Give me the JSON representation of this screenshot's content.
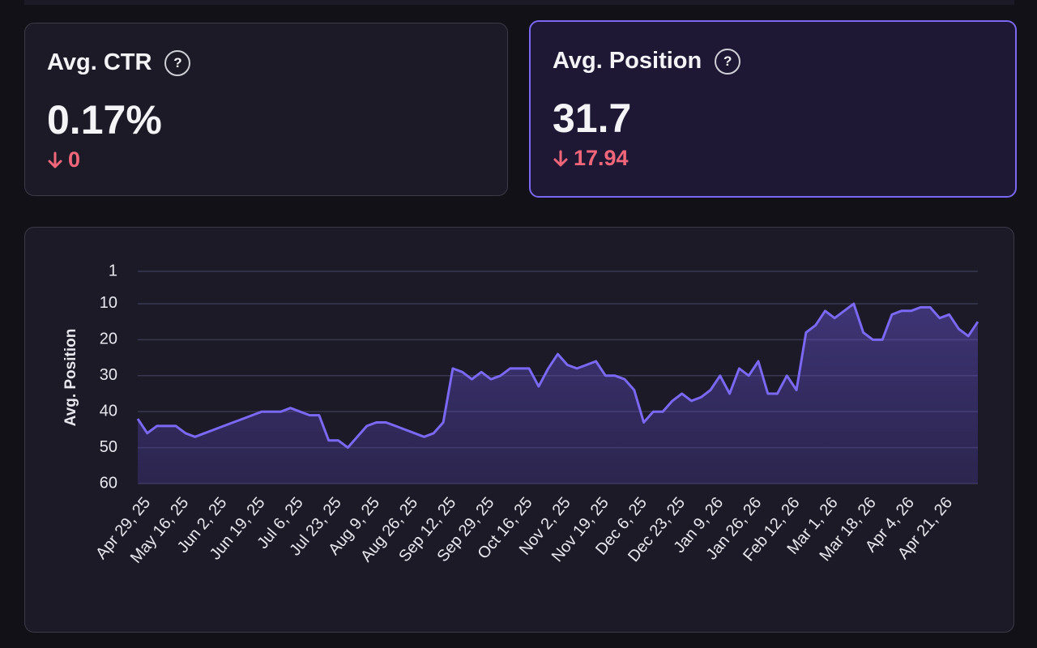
{
  "cards": [
    {
      "label": "Avg. CTR",
      "help": "?",
      "value": "0.17%",
      "delta": "0"
    },
    {
      "label": "Avg. Position",
      "help": "?",
      "value": "31.7",
      "delta": "17.94"
    }
  ],
  "chart_data": {
    "type": "line",
    "y_label": "Avg. Position",
    "inverted_y": true,
    "grid": true,
    "color": "#7b68f5",
    "categories": [
      "Apr 29, 25",
      null,
      null,
      null,
      "May 16, 25",
      null,
      null,
      null,
      "Jun 2, 25",
      null,
      null,
      null,
      "Jun 19, 25",
      null,
      null,
      null,
      "Jul 6, 25",
      null,
      null,
      null,
      "Jul 23, 25",
      null,
      null,
      null,
      "Aug 9, 25",
      null,
      null,
      null,
      "Aug 26, 25",
      null,
      null,
      null,
      "Sep 12, 25",
      null,
      null,
      null,
      "Sep 29, 25",
      null,
      null,
      null,
      "Oct 16, 25",
      null,
      null,
      null,
      "Nov 2, 25",
      null,
      null,
      null,
      "Nov 19, 25",
      null,
      null,
      null,
      "Dec 6, 25",
      null,
      null,
      null,
      "Dec 23, 25",
      null,
      null,
      null,
      "Jan 9, 26",
      null,
      null,
      null,
      "Jan 26, 26",
      null,
      null,
      null,
      "Feb 12, 26",
      null,
      null,
      null,
      "Mar 1, 26",
      null,
      null,
      null,
      "Mar 18, 26",
      null,
      null,
      null,
      "Apr 4, 26",
      null,
      null,
      null,
      "Apr 21, 26",
      null,
      null,
      null,
      null
    ],
    "values": [
      42,
      46,
      44,
      44,
      44,
      46,
      47,
      46,
      45,
      44,
      43,
      42,
      41,
      40,
      40,
      40,
      39,
      40,
      41,
      41,
      48,
      48,
      50,
      47,
      44,
      43,
      43,
      44,
      45,
      46,
      47,
      46,
      43,
      28,
      29,
      31,
      29,
      31,
      30,
      28,
      28,
      28,
      33,
      28,
      24,
      27,
      28,
      27,
      26,
      30,
      30,
      31,
      34,
      43,
      40,
      40,
      37,
      35,
      37,
      36,
      34,
      30,
      35,
      28,
      30,
      26,
      35,
      35,
      30,
      34,
      18,
      16,
      12,
      14,
      12,
      10,
      18,
      20,
      20,
      13,
      12,
      12,
      11,
      11,
      14,
      13,
      17,
      19,
      15
    ],
    "ylim": [
      1,
      60
    ],
    "yticks": [
      1,
      10,
      20,
      30,
      40,
      50,
      60
    ]
  }
}
